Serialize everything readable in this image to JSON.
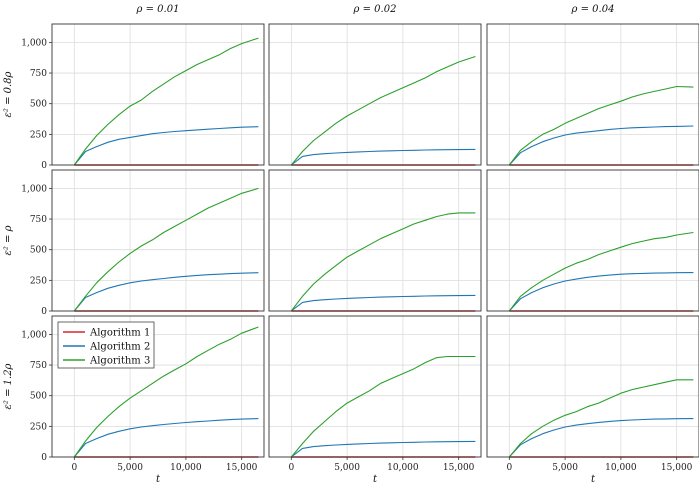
{
  "chart_data": {
    "type": "line",
    "layout": "3x3 grid of subplots, shared axes",
    "column_titles": [
      "ρ = 0.01",
      "ρ = 0.02",
      "ρ = 0.04"
    ],
    "row_labels": [
      "ε² = 0.8ρ",
      "ε² = ρ",
      "ε² = 1.2ρ"
    ],
    "xlabel": "t",
    "ylabel": "",
    "xlim": [
      -2000,
      17000
    ],
    "ylim": [
      0,
      1150
    ],
    "xticks": [
      0,
      5000,
      10000,
      15000
    ],
    "xtick_labels": [
      "0",
      "5,000",
      "10,000",
      "15,000"
    ],
    "yticks": [
      0,
      250,
      500,
      750,
      1000
    ],
    "ytick_labels": [
      "0",
      "250",
      "500",
      "750",
      "1,000"
    ],
    "grid": true,
    "legend": {
      "placement": "top-left of bottom-left panel",
      "entries": [
        "Algorithm 1",
        "Algorithm 2",
        "Algorithm 3"
      ]
    },
    "colors": {
      "Algorithm 1": "#d62728",
      "Algorithm 2": "#1f77b4",
      "Algorithm 3": "#2ca02c"
    },
    "x": [
      0,
      1000,
      2000,
      3000,
      4000,
      5000,
      6000,
      7000,
      8000,
      9000,
      10000,
      11000,
      12000,
      13000,
      14000,
      15000,
      16500
    ],
    "panels": [
      {
        "row": 0,
        "col": 0,
        "series": [
          {
            "name": "Algorithm 1",
            "values": [
              0,
              0,
              0,
              0,
              0,
              0,
              0,
              0,
              0,
              0,
              0,
              0,
              0,
              0,
              0,
              0,
              0
            ]
          },
          {
            "name": "Algorithm 2",
            "values": [
              0,
              110,
              150,
              185,
              210,
              225,
              240,
              255,
              265,
              273,
              280,
              286,
              292,
              298,
              303,
              308,
              312
            ]
          },
          {
            "name": "Algorithm 3",
            "values": [
              0,
              130,
              240,
              330,
              410,
              480,
              530,
              600,
              660,
              720,
              770,
              820,
              860,
              900,
              950,
              990,
              1035
            ]
          }
        ]
      },
      {
        "row": 0,
        "col": 1,
        "series": [
          {
            "name": "Algorithm 1",
            "values": [
              0,
              0,
              0,
              0,
              0,
              0,
              0,
              0,
              0,
              0,
              0,
              0,
              0,
              0,
              0,
              0,
              0
            ]
          },
          {
            "name": "Algorithm 2",
            "values": [
              0,
              70,
              85,
              92,
              98,
              103,
              107,
              110,
              113,
              116,
              118,
              120,
              122,
              124,
              125,
              126,
              127
            ]
          },
          {
            "name": "Algorithm 3",
            "values": [
              0,
              110,
              200,
              270,
              340,
              400,
              450,
              500,
              550,
              590,
              630,
              670,
              710,
              760,
              800,
              840,
              885
            ]
          }
        ]
      },
      {
        "row": 0,
        "col": 2,
        "series": [
          {
            "name": "Algorithm 1",
            "values": [
              0,
              0,
              0,
              0,
              0,
              0,
              0,
              0,
              0,
              0,
              0,
              0,
              0,
              0,
              0,
              0,
              0
            ]
          },
          {
            "name": "Algorithm 2",
            "values": [
              0,
              100,
              150,
              190,
              220,
              245,
              260,
              270,
              280,
              290,
              298,
              303,
              307,
              310,
              313,
              315,
              318
            ]
          },
          {
            "name": "Algorithm 3",
            "values": [
              0,
              120,
              190,
              250,
              290,
              340,
              380,
              420,
              460,
              490,
              520,
              555,
              580,
              600,
              620,
              640,
              635
            ]
          }
        ]
      },
      {
        "row": 1,
        "col": 0,
        "series": [
          {
            "name": "Algorithm 1",
            "values": [
              0,
              0,
              0,
              0,
              0,
              0,
              0,
              0,
              0,
              0,
              0,
              0,
              0,
              0,
              0,
              0,
              0
            ]
          },
          {
            "name": "Algorithm 2",
            "values": [
              0,
              110,
              150,
              185,
              210,
              230,
              245,
              255,
              265,
              275,
              283,
              290,
              296,
              300,
              305,
              308,
              312
            ]
          },
          {
            "name": "Algorithm 3",
            "values": [
              0,
              120,
              230,
              320,
              400,
              470,
              530,
              580,
              640,
              690,
              740,
              790,
              840,
              880,
              920,
              960,
              1000
            ]
          }
        ]
      },
      {
        "row": 1,
        "col": 1,
        "series": [
          {
            "name": "Algorithm 1",
            "values": [
              0,
              0,
              0,
              0,
              0,
              0,
              0,
              0,
              0,
              0,
              0,
              0,
              0,
              0,
              0,
              0,
              0
            ]
          },
          {
            "name": "Algorithm 2",
            "values": [
              0,
              70,
              85,
              92,
              98,
              103,
              107,
              110,
              113,
              116,
              118,
              120,
              122,
              124,
              125,
              126,
              127
            ]
          },
          {
            "name": "Algorithm 3",
            "values": [
              0,
              120,
              220,
              300,
              370,
              440,
              490,
              540,
              590,
              630,
              670,
              710,
              740,
              770,
              790,
              800,
              800
            ]
          }
        ]
      },
      {
        "row": 1,
        "col": 2,
        "series": [
          {
            "name": "Algorithm 1",
            "values": [
              0,
              0,
              0,
              0,
              0,
              0,
              0,
              0,
              0,
              0,
              0,
              0,
              0,
              0,
              0,
              0,
              0
            ]
          },
          {
            "name": "Algorithm 2",
            "values": [
              0,
              100,
              150,
              190,
              220,
              245,
              260,
              275,
              285,
              293,
              300,
              304,
              307,
              309,
              311,
              312,
              313
            ]
          },
          {
            "name": "Algorithm 3",
            "values": [
              0,
              120,
              190,
              250,
              300,
              350,
              390,
              420,
              460,
              490,
              520,
              550,
              570,
              590,
              600,
              620,
              640
            ]
          }
        ]
      },
      {
        "row": 2,
        "col": 0,
        "series": [
          {
            "name": "Algorithm 1",
            "values": [
              0,
              0,
              0,
              0,
              0,
              0,
              0,
              0,
              0,
              0,
              0,
              0,
              0,
              0,
              0,
              0,
              0
            ]
          },
          {
            "name": "Algorithm 2",
            "values": [
              0,
              110,
              150,
              185,
              210,
              230,
              245,
              255,
              265,
              273,
              281,
              288,
              294,
              300,
              305,
              309,
              313
            ]
          },
          {
            "name": "Algorithm 3",
            "values": [
              0,
              130,
              240,
              330,
              410,
              480,
              540,
              600,
              660,
              710,
              760,
              820,
              870,
              920,
              960,
              1010,
              1060
            ]
          }
        ]
      },
      {
        "row": 2,
        "col": 1,
        "series": [
          {
            "name": "Algorithm 1",
            "values": [
              0,
              0,
              0,
              0,
              0,
              0,
              0,
              0,
              0,
              0,
              0,
              0,
              0,
              0,
              0,
              0,
              0
            ]
          },
          {
            "name": "Algorithm 2",
            "values": [
              0,
              70,
              85,
              92,
              98,
              103,
              107,
              110,
              113,
              116,
              118,
              120,
              122,
              124,
              125,
              126,
              127
            ]
          },
          {
            "name": "Algorithm 3",
            "values": [
              0,
              110,
              210,
              290,
              370,
              440,
              490,
              540,
              600,
              640,
              680,
              720,
              770,
              810,
              820,
              820,
              820
            ]
          }
        ]
      },
      {
        "row": 2,
        "col": 2,
        "series": [
          {
            "name": "Algorithm 1",
            "values": [
              0,
              0,
              0,
              0,
              0,
              0,
              0,
              0,
              0,
              0,
              0,
              0,
              0,
              0,
              0,
              0,
              0
            ]
          },
          {
            "name": "Algorithm 2",
            "values": [
              0,
              100,
              150,
              190,
              220,
              245,
              260,
              272,
              282,
              290,
              297,
              302,
              306,
              309,
              311,
              312,
              313
            ]
          },
          {
            "name": "Algorithm 3",
            "values": [
              0,
              110,
              190,
              250,
              300,
              340,
              370,
              410,
              440,
              480,
              520,
              550,
              570,
              590,
              610,
              630,
              630
            ]
          }
        ]
      }
    ]
  }
}
